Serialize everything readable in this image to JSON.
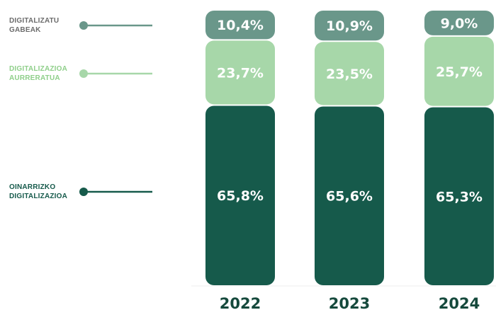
{
  "chart_data": {
    "type": "bar",
    "stacked": true,
    "categories": [
      "2022",
      "2023",
      "2024"
    ],
    "series": [
      {
        "name": "OINARRIZKO DIGITALIZAZIOA",
        "values": [
          65.8,
          65.6,
          65.3
        ],
        "labels": [
          "65,8%",
          "65,6%",
          "65,3%"
        ],
        "color": "#165a4b"
      },
      {
        "name": "DIGITALIZAZIOA AURRERATUA",
        "values": [
          23.7,
          23.5,
          25.7
        ],
        "labels": [
          "23,7%",
          "23,5%",
          "25,7%"
        ],
        "color": "#a7d7a9"
      },
      {
        "name": "DIGITALIZATU GABEAK",
        "values": [
          10.4,
          10.9,
          9.0
        ],
        "labels": [
          "10,4%",
          "10,9%",
          "9,0%"
        ],
        "color": "#6a978a"
      }
    ],
    "legend": [
      {
        "lines": [
          "DIGITALIZATU",
          "GABEAK"
        ],
        "color": "#6a978a",
        "text_color": "#6b6b6b"
      },
      {
        "lines": [
          "DIGITALIZAZIOA",
          "AURRERATUA"
        ],
        "color": "#a7d7a9",
        "text_color": "#8fcf8a"
      },
      {
        "lines": [
          "OINARRIZKO",
          "DIGITALIZAZIOA"
        ],
        "color": "#165a4b",
        "text_color": "#165a4b"
      }
    ],
    "legend_position": "left",
    "ylim": [
      0,
      100
    ],
    "grid": false
  }
}
